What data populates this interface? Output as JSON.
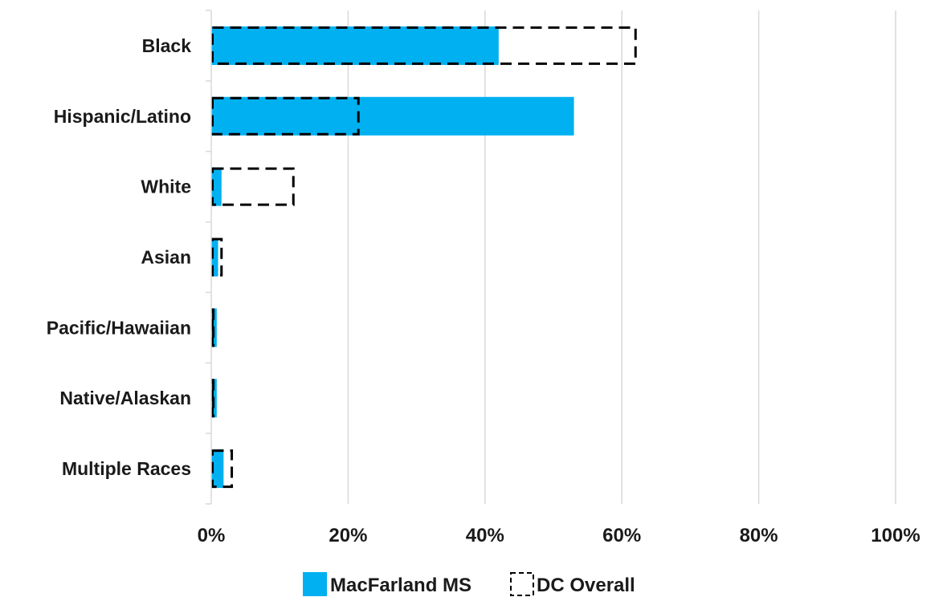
{
  "chart_data": {
    "type": "bar",
    "orientation": "horizontal",
    "categories": [
      "Black",
      "Hispanic/Latino",
      "White",
      "Asian",
      "Pacific/Hawaiian",
      "Native/Alaskan",
      "Multiple Races"
    ],
    "series": [
      {
        "name": "MacFarland MS",
        "style": "filled",
        "color": "#00b0f0",
        "values": [
          42,
          53,
          1.5,
          1,
          0.8,
          0.8,
          1.8
        ]
      },
      {
        "name": "DC Overall",
        "style": "dashed-outline",
        "color": "#000000",
        "values": [
          62,
          21.5,
          12,
          1.5,
          0.3,
          0.3,
          3
        ]
      }
    ],
    "xlim": [
      0,
      100
    ],
    "x_ticks": [
      0,
      20,
      40,
      60,
      80,
      100
    ],
    "x_tick_labels": [
      "0%",
      "20%",
      "40%",
      "60%",
      "80%",
      "100%"
    ],
    "grid": "vertical",
    "legend_position": "bottom"
  }
}
